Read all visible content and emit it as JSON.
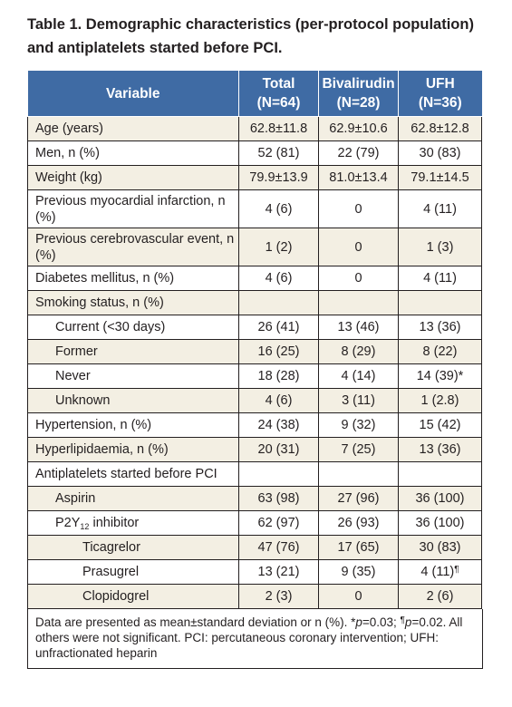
{
  "caption": {
    "line1": "Table 1. Demographic characteristics (per-protocol population)",
    "line2": "and antiplatelets started before PCI."
  },
  "header": {
    "variable": "Variable",
    "total": "Total",
    "total_n": "(N=64)",
    "biv": "Bivalirudin",
    "biv_n": "(N=28)",
    "ufh": "UFH",
    "ufh_n": "(N=36)"
  },
  "rows": [
    {
      "label": "Age (years)",
      "total": "62.8±11.8",
      "biv": "62.9±10.6",
      "ufh": "62.8±12.8"
    },
    {
      "label": "Men, n (%)",
      "total": "52 (81)",
      "biv": "22 (79)",
      "ufh": "30 (83)"
    },
    {
      "label": "Weight (kg)",
      "total": "79.9±13.9",
      "biv": "81.0±13.4",
      "ufh": "79.1±14.5"
    },
    {
      "label": "Previous myocardial infarction, n (%)",
      "total": "4 (6)",
      "biv": "0",
      "ufh": "4 (11)"
    },
    {
      "label": "Previous cerebrovascular event, n (%)",
      "total": "1 (2)",
      "biv": "0",
      "ufh": "1 (3)"
    },
    {
      "label": "Diabetes mellitus, n (%)",
      "total": "4 (6)",
      "biv": "0",
      "ufh": "4 (11)"
    },
    {
      "label": "Smoking status, n (%)",
      "total": "",
      "biv": "",
      "ufh": ""
    },
    {
      "label": "Current (<30 days)",
      "total": "26 (41)",
      "biv": "13 (46)",
      "ufh": "13 (36)"
    },
    {
      "label": "Former",
      "total": "16 (25)",
      "biv": "8 (29)",
      "ufh": "8 (22)"
    },
    {
      "label": "Never",
      "total": "18 (28)",
      "biv": "4 (14)",
      "ufh": "14 (39)*"
    },
    {
      "label": "Unknown",
      "total": "4 (6)",
      "biv": "3 (11)",
      "ufh": "1 (2.8)"
    },
    {
      "label": "Hypertension, n (%)",
      "total": "24 (38)",
      "biv": "9 (32)",
      "ufh": "15 (42)"
    },
    {
      "label": "Hyperlipidaemia, n (%)",
      "total": "20 (31)",
      "biv": "7 (25)",
      "ufh": "13 (36)"
    },
    {
      "label": "Antiplatelets started before PCI",
      "total": "",
      "biv": "",
      "ufh": ""
    },
    {
      "label": "Aspirin",
      "total": "63 (98)",
      "biv": "27 (96)",
      "ufh": "36 (100)"
    },
    {
      "label": "P2Y",
      "label_sub": "12",
      "label_rest": " inhibitor",
      "total": "62 (97)",
      "biv": "26 (93)",
      "ufh": "36 (100)"
    },
    {
      "label": "Ticagrelor",
      "total": "47 (76)",
      "biv": "17 (65)",
      "ufh": "30 (83)"
    },
    {
      "label": "Prasugrel",
      "total": "13 (21)",
      "biv": "9 (35)",
      "ufh": "4 (11)",
      "ufh_mark": "¶"
    },
    {
      "label": "Clopidogrel",
      "total": "2 (3)",
      "biv": "0",
      "ufh": "2 (6)"
    }
  ],
  "footnote": {
    "part1": "Data are presented as mean±standard deviation or n (%). *",
    "p1": "p",
    "part2": "=0.03; ",
    "mark": "¶",
    "p2": "p",
    "part3": "=0.02. All others were not significant. PCI: percutaneous coronary intervention; UFH: unfractionated heparin"
  }
}
